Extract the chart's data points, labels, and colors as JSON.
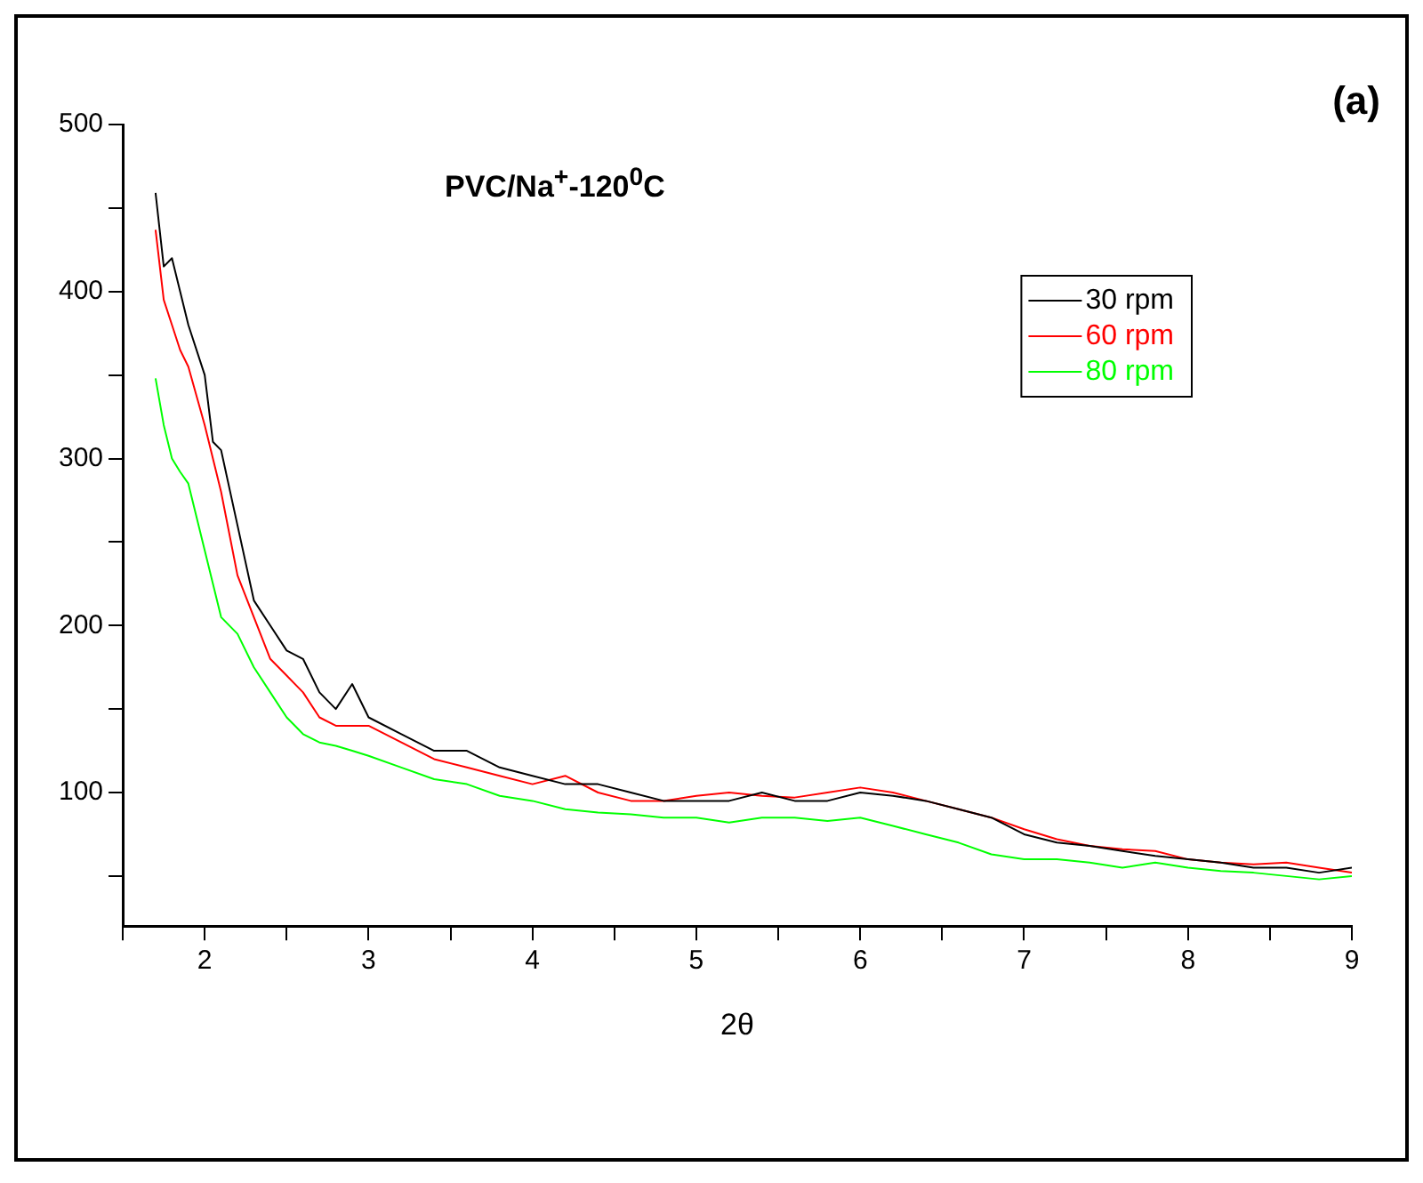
{
  "chart_data": {
    "type": "line",
    "title": "PVC/Na$^{+}$-120$^{0}$C",
    "xlabel": "2θ",
    "annotations": [
      "(a)"
    ],
    "xlim": [
      1.5,
      9
    ],
    "xticks": [
      {
        "value": 1.5,
        "label": null
      },
      2,
      {
        "value": 2.5,
        "label": null
      },
      3,
      {
        "value": 3.5,
        "label": null
      },
      4,
      {
        "value": 4.5,
        "label": null
      },
      5,
      {
        "value": 5.5,
        "label": null
      },
      6,
      {
        "value": 6.5,
        "label": null
      },
      7,
      {
        "value": 7.5,
        "label": null
      },
      8,
      {
        "value": 8.5,
        "label": null
      },
      9
    ],
    "ylim": [
      20,
      500
    ],
    "yticks": [
      {
        "value": 50,
        "label": null
      },
      100,
      {
        "value": 150,
        "label": null
      },
      200,
      {
        "value": 250,
        "label": null
      },
      300,
      {
        "value": 350,
        "label": null
      },
      400,
      {
        "value": 450,
        "label": null
      },
      500
    ],
    "grid": false,
    "legend": "top right",
    "marker": "none",
    "line_style": "solid",
    "x": [
      1.7,
      1.75,
      1.8,
      1.85,
      1.9,
      2.0,
      2.05,
      2.1,
      2.2,
      2.3,
      2.4,
      2.5,
      2.6,
      2.7,
      2.8,
      2.9,
      3.0,
      3.2,
      3.4,
      3.6,
      3.8,
      4.0,
      4.2,
      4.4,
      4.6,
      4.8,
      5.0,
      5.2,
      5.4,
      5.6,
      5.8,
      6.0,
      6.2,
      6.4,
      6.6,
      6.8,
      7.0,
      7.2,
      7.4,
      7.6,
      7.8,
      8.0,
      8.2,
      8.4,
      8.6,
      8.8,
      9.0
    ],
    "series": [
      {
        "name": "30 rpm",
        "color": "#000000",
        "values": [
          459,
          415,
          420,
          400,
          380,
          350,
          310,
          305,
          260,
          215,
          200,
          185,
          180,
          160,
          150,
          165,
          145,
          135,
          125,
          125,
          115,
          110,
          105,
          105,
          100,
          95,
          95,
          95,
          100,
          95,
          95,
          100,
          98,
          95,
          90,
          85,
          75,
          70,
          68,
          65,
          62,
          60,
          58,
          55,
          55,
          52,
          55
        ]
      },
      {
        "name": "60 rpm",
        "color": "#ff0000",
        "values": [
          437,
          395,
          380,
          365,
          355,
          320,
          300,
          280,
          230,
          205,
          180,
          170,
          160,
          145,
          140,
          140,
          140,
          130,
          120,
          115,
          110,
          105,
          110,
          100,
          95,
          95,
          98,
          100,
          98,
          97,
          100,
          103,
          100,
          95,
          90,
          85,
          78,
          72,
          68,
          66,
          65,
          60,
          58,
          57,
          58,
          55,
          52
        ]
      },
      {
        "name": "80 rpm",
        "color": "#00ff00",
        "values": [
          348,
          320,
          300,
          292,
          285,
          245,
          225,
          205,
          195,
          175,
          160,
          145,
          135,
          130,
          128,
          125,
          122,
          115,
          108,
          105,
          98,
          95,
          90,
          88,
          87,
          85,
          85,
          82,
          85,
          85,
          83,
          85,
          80,
          75,
          70,
          63,
          60,
          60,
          58,
          55,
          58,
          55,
          53,
          52,
          50,
          48,
          50
        ]
      }
    ]
  }
}
